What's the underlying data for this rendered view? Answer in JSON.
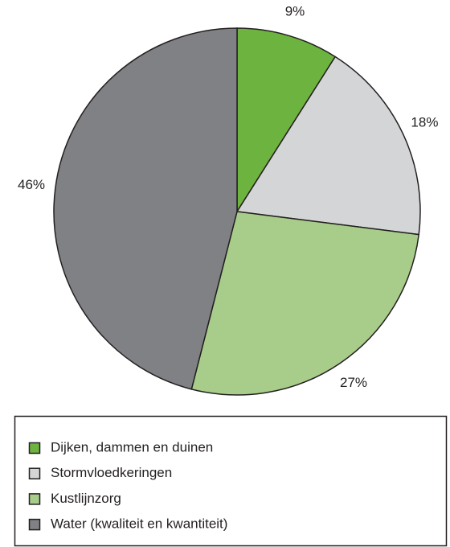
{
  "chart_data": {
    "type": "pie",
    "categories": [
      "Dijken, dammen en duinen",
      "Stormvloedkeringen",
      "Kustlijnzorg",
      "Water (kwaliteit en kwantiteit)"
    ],
    "values": [
      9,
      18,
      27,
      46
    ],
    "value_labels": [
      "9%",
      "18%",
      "27%",
      "46%"
    ],
    "colors": [
      "#6db33f",
      "#d4d5d7",
      "#a8cd8a",
      "#808184"
    ]
  }
}
